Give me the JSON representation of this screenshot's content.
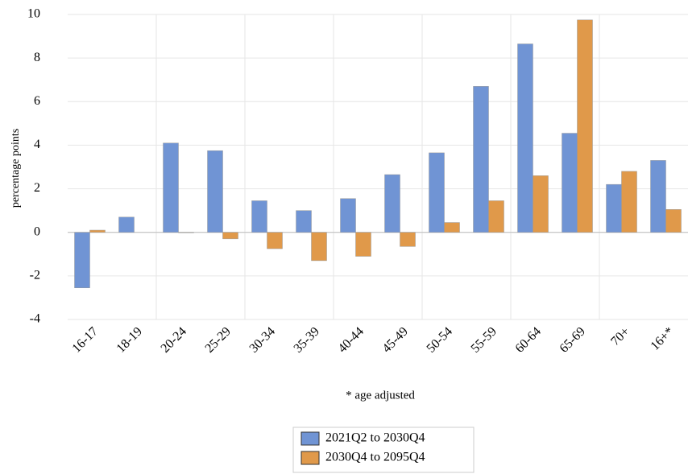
{
  "chart_data": {
    "type": "bar",
    "y_label": "percentage points",
    "note": "* age adjusted",
    "categories": [
      "16-17",
      "18-19",
      "20-24",
      "25-29",
      "30-34",
      "35-39",
      "40-44",
      "45-49",
      "50-54",
      "55-59",
      "60-64",
      "65-69",
      "70+",
      "16+*"
    ],
    "series": [
      {
        "name": "2021Q2 to 2030Q4",
        "color": "#7094d4",
        "values": [
          -2.55,
          0.7,
          4.1,
          3.75,
          1.45,
          1.0,
          1.55,
          2.65,
          3.65,
          6.7,
          8.65,
          4.55,
          2.2,
          3.3
        ]
      },
      {
        "name": "2030Q4 to 2095Q4",
        "color": "#e0994a",
        "values": [
          0.1,
          0.0,
          -0.02,
          -0.3,
          -0.75,
          -1.3,
          -1.1,
          -0.65,
          0.45,
          1.45,
          2.6,
          9.75,
          2.8,
          1.05
        ]
      }
    ],
    "ylim": [
      -4,
      10
    ],
    "yticks": [
      -4,
      -2,
      0,
      2,
      4,
      6,
      8,
      10
    ],
    "grid": true
  }
}
